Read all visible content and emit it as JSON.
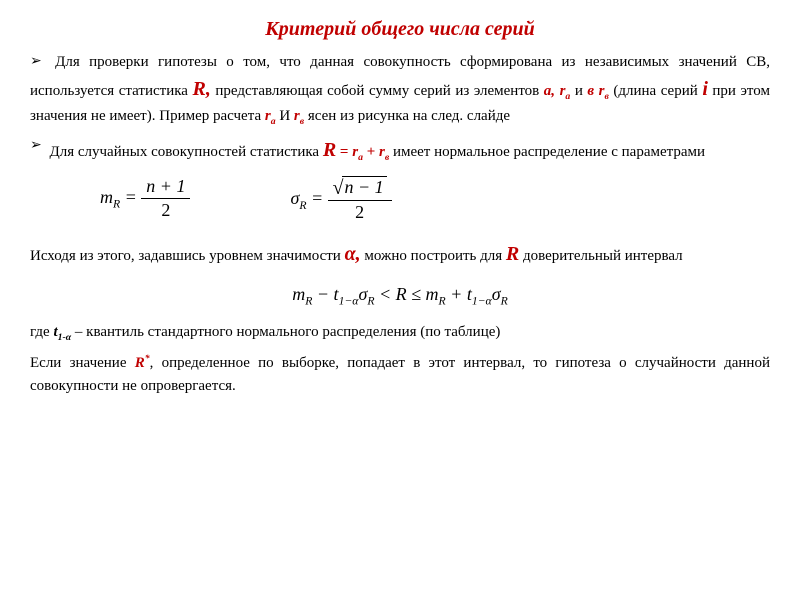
{
  "title": "Критерий общего числа серий",
  "p1_a": "Для проверки гипотезы о том, что данная совокупность сформирована из независимых значений СВ, используется статистика ",
  "p1_R": "R,",
  "p1_b": " представляющая собой сумму серий из элементов ",
  "p1_ara": "a, r",
  "p1_ra_sub": "a",
  "p1_c": " и ",
  "p1_vrb": "в r",
  "p1_rv_sub": "в",
  "p1_d": " (длина серий ",
  "p1_i": "i",
  "p1_e": " при этом значения не имеет). Пример расчета ",
  "p1_ra2": "r",
  "p1_f": " И  ",
  "p1_rv2": "r",
  "p1_g": "  ясен из рисунка на след. слайде",
  "p2_a": "Для случайных совокупностей статистика ",
  "p2_R": "R",
  "p2_eq": " = ",
  "p2_ra": "r",
  "p2_plus": " + ",
  "p2_rv": "r",
  "p2_b": " имеет нормальное распределение с параметрами",
  "p3_a": "Исходя из этого, задавшись уровнем значимости ",
  "p3_alpha": "α,",
  "p3_b": " можно построить для ",
  "p3_R": "R",
  "p3_c": " доверительный интервал",
  "p4_a": "где ",
  "p4_t": "t",
  "p4_tsub": "1-α",
  "p4_b": " – квантиль стандартного нормального распределения (по таблице)",
  "p5_a": "Если значение ",
  "p5_R": "R",
  "p5_star": "*",
  "p5_b": ", определенное по выборке, попадает в этот интервал, то гипотеза о случайности данной совокупности не опровергается.",
  "formula1_lhs": "m",
  "formula1_num": "n + 1",
  "formula1_den": "2",
  "formula2_lhs": "σ",
  "formula2_num": "n − 1",
  "formula2_den": "2",
  "colors": {
    "accent": "#c00000",
    "text": "#000000",
    "bg": "#ffffff"
  },
  "fonts": {
    "family": "Times New Roman",
    "title_size": 20,
    "body_size": 15,
    "formula_size": 18
  }
}
